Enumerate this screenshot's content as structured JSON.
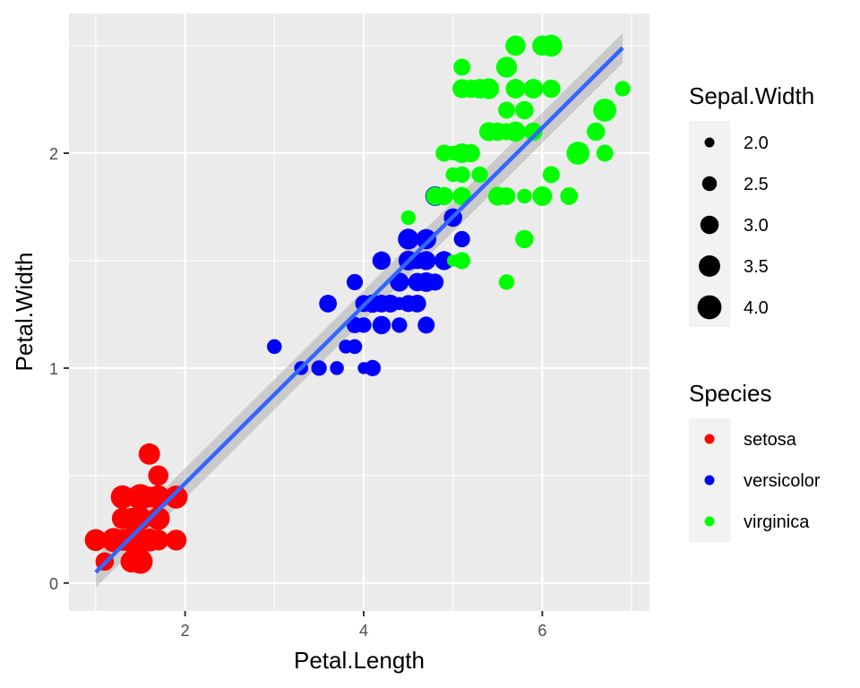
{
  "chart_data": {
    "type": "scatter",
    "xlabel": "Petal.Length",
    "ylabel": "Petal.Width",
    "xlim": [
      0.7,
      7.2
    ],
    "ylim": [
      -0.13,
      2.65
    ],
    "x_ticks": [
      2,
      4,
      6
    ],
    "y_ticks": [
      0,
      1,
      2
    ],
    "grid": true,
    "legend_position": "right",
    "background_color": "#ebebeb",
    "grid_color": "#ffffff",
    "size_legend": {
      "title": "Sepal.Width",
      "values": [
        "2.0",
        "2.5",
        "3.0",
        "3.5",
        "4.0"
      ]
    },
    "color_legend": {
      "title": "Species",
      "entries": [
        {
          "label": "setosa",
          "color": "#ff0000"
        },
        {
          "label": "versicolor",
          "color": "#0000ff"
        },
        {
          "label": "virginica",
          "color": "#00ff00"
        }
      ]
    },
    "regression": {
      "method": "lm",
      "color": "#3366ff",
      "x": [
        1.0,
        6.9
      ],
      "y": [
        0.05,
        2.49
      ],
      "band": 0.07
    },
    "series": [
      {
        "name": "setosa",
        "color": "#ff0000",
        "points": [
          {
            "x": 1.4,
            "y": 0.2,
            "s": 3.5
          },
          {
            "x": 1.4,
            "y": 0.2,
            "s": 3.0
          },
          {
            "x": 1.3,
            "y": 0.2,
            "s": 3.2
          },
          {
            "x": 1.5,
            "y": 0.2,
            "s": 3.1
          },
          {
            "x": 1.4,
            "y": 0.2,
            "s": 3.6
          },
          {
            "x": 1.7,
            "y": 0.4,
            "s": 3.9
          },
          {
            "x": 1.4,
            "y": 0.3,
            "s": 3.4
          },
          {
            "x": 1.5,
            "y": 0.2,
            "s": 3.4
          },
          {
            "x": 1.4,
            "y": 0.2,
            "s": 2.9
          },
          {
            "x": 1.5,
            "y": 0.1,
            "s": 3.1
          },
          {
            "x": 1.5,
            "y": 0.2,
            "s": 3.7
          },
          {
            "x": 1.6,
            "y": 0.2,
            "s": 3.4
          },
          {
            "x": 1.4,
            "y": 0.1,
            "s": 3.0
          },
          {
            "x": 1.1,
            "y": 0.1,
            "s": 3.0
          },
          {
            "x": 1.2,
            "y": 0.2,
            "s": 4.0
          },
          {
            "x": 1.5,
            "y": 0.4,
            "s": 4.4
          },
          {
            "x": 1.3,
            "y": 0.4,
            "s": 3.9
          },
          {
            "x": 1.4,
            "y": 0.3,
            "s": 3.5
          },
          {
            "x": 1.7,
            "y": 0.3,
            "s": 3.8
          },
          {
            "x": 1.5,
            "y": 0.3,
            "s": 3.8
          },
          {
            "x": 1.7,
            "y": 0.2,
            "s": 3.4
          },
          {
            "x": 1.5,
            "y": 0.4,
            "s": 3.7
          },
          {
            "x": 1.0,
            "y": 0.2,
            "s": 3.6
          },
          {
            "x": 1.7,
            "y": 0.5,
            "s": 3.3
          },
          {
            "x": 1.9,
            "y": 0.2,
            "s": 3.4
          },
          {
            "x": 1.6,
            "y": 0.2,
            "s": 3.0
          },
          {
            "x": 1.6,
            "y": 0.4,
            "s": 3.4
          },
          {
            "x": 1.5,
            "y": 0.2,
            "s": 3.5
          },
          {
            "x": 1.4,
            "y": 0.2,
            "s": 3.4
          },
          {
            "x": 1.6,
            "y": 0.2,
            "s": 3.2
          },
          {
            "x": 1.6,
            "y": 0.2,
            "s": 3.1
          },
          {
            "x": 1.5,
            "y": 0.4,
            "s": 3.4
          },
          {
            "x": 1.5,
            "y": 0.1,
            "s": 4.1
          },
          {
            "x": 1.4,
            "y": 0.2,
            "s": 4.2
          },
          {
            "x": 1.5,
            "y": 0.2,
            "s": 3.1
          },
          {
            "x": 1.2,
            "y": 0.2,
            "s": 3.2
          },
          {
            "x": 1.3,
            "y": 0.2,
            "s": 3.5
          },
          {
            "x": 1.4,
            "y": 0.1,
            "s": 3.6
          },
          {
            "x": 1.3,
            "y": 0.2,
            "s": 3.0
          },
          {
            "x": 1.5,
            "y": 0.2,
            "s": 3.4
          },
          {
            "x": 1.3,
            "y": 0.3,
            "s": 3.5
          },
          {
            "x": 1.3,
            "y": 0.3,
            "s": 2.3
          },
          {
            "x": 1.3,
            "y": 0.2,
            "s": 3.2
          },
          {
            "x": 1.6,
            "y": 0.6,
            "s": 3.5
          },
          {
            "x": 1.9,
            "y": 0.4,
            "s": 3.8
          },
          {
            "x": 1.4,
            "y": 0.3,
            "s": 3.0
          },
          {
            "x": 1.6,
            "y": 0.2,
            "s": 3.8
          },
          {
            "x": 1.4,
            "y": 0.2,
            "s": 3.2
          },
          {
            "x": 1.5,
            "y": 0.2,
            "s": 3.7
          },
          {
            "x": 1.4,
            "y": 0.2,
            "s": 3.3
          }
        ]
      },
      {
        "name": "versicolor",
        "color": "#0000ff",
        "points": [
          {
            "x": 4.7,
            "y": 1.4,
            "s": 3.2
          },
          {
            "x": 4.5,
            "y": 1.5,
            "s": 3.2
          },
          {
            "x": 4.9,
            "y": 1.5,
            "s": 3.1
          },
          {
            "x": 4.0,
            "y": 1.3,
            "s": 2.3
          },
          {
            "x": 4.6,
            "y": 1.5,
            "s": 2.8
          },
          {
            "x": 4.5,
            "y": 1.3,
            "s": 2.8
          },
          {
            "x": 4.7,
            "y": 1.6,
            "s": 3.3
          },
          {
            "x": 3.3,
            "y": 1.0,
            "s": 2.4
          },
          {
            "x": 4.6,
            "y": 1.3,
            "s": 2.9
          },
          {
            "x": 3.9,
            "y": 1.4,
            "s": 2.7
          },
          {
            "x": 3.5,
            "y": 1.0,
            "s": 2.0
          },
          {
            "x": 4.2,
            "y": 1.5,
            "s": 3.0
          },
          {
            "x": 4.0,
            "y": 1.0,
            "s": 2.2
          },
          {
            "x": 4.7,
            "y": 1.4,
            "s": 2.9
          },
          {
            "x": 3.6,
            "y": 1.3,
            "s": 2.9
          },
          {
            "x": 4.4,
            "y": 1.4,
            "s": 3.1
          },
          {
            "x": 4.5,
            "y": 1.5,
            "s": 3.0
          },
          {
            "x": 4.1,
            "y": 1.0,
            "s": 2.7
          },
          {
            "x": 4.5,
            "y": 1.5,
            "s": 2.2
          },
          {
            "x": 3.9,
            "y": 1.1,
            "s": 2.5
          },
          {
            "x": 4.8,
            "y": 1.8,
            "s": 3.2
          },
          {
            "x": 4.0,
            "y": 1.3,
            "s": 2.8
          },
          {
            "x": 4.9,
            "y": 1.5,
            "s": 2.5
          },
          {
            "x": 4.7,
            "y": 1.2,
            "s": 2.8
          },
          {
            "x": 4.3,
            "y": 1.3,
            "s": 2.9
          },
          {
            "x": 4.4,
            "y": 1.4,
            "s": 3.0
          },
          {
            "x": 4.8,
            "y": 1.4,
            "s": 2.8
          },
          {
            "x": 5.0,
            "y": 1.7,
            "s": 3.0
          },
          {
            "x": 4.5,
            "y": 1.5,
            "s": 2.9
          },
          {
            "x": 3.5,
            "y": 1.0,
            "s": 2.6
          },
          {
            "x": 3.8,
            "y": 1.1,
            "s": 2.4
          },
          {
            "x": 3.7,
            "y": 1.0,
            "s": 2.4
          },
          {
            "x": 3.9,
            "y": 1.2,
            "s": 2.7
          },
          {
            "x": 5.1,
            "y": 1.6,
            "s": 2.7
          },
          {
            "x": 4.5,
            "y": 1.5,
            "s": 3.0
          },
          {
            "x": 4.5,
            "y": 1.6,
            "s": 3.4
          },
          {
            "x": 4.7,
            "y": 1.5,
            "s": 3.1
          },
          {
            "x": 4.4,
            "y": 1.3,
            "s": 2.3
          },
          {
            "x": 4.1,
            "y": 1.3,
            "s": 3.0
          },
          {
            "x": 4.0,
            "y": 1.3,
            "s": 2.5
          },
          {
            "x": 4.4,
            "y": 1.2,
            "s": 2.6
          },
          {
            "x": 4.6,
            "y": 1.4,
            "s": 3.0
          },
          {
            "x": 4.0,
            "y": 1.2,
            "s": 2.6
          },
          {
            "x": 3.3,
            "y": 1.0,
            "s": 2.3
          },
          {
            "x": 4.2,
            "y": 1.3,
            "s": 2.7
          },
          {
            "x": 4.2,
            "y": 1.2,
            "s": 3.0
          },
          {
            "x": 4.2,
            "y": 1.3,
            "s": 2.9
          },
          {
            "x": 4.3,
            "y": 1.3,
            "s": 2.9
          },
          {
            "x": 3.0,
            "y": 1.1,
            "s": 2.5
          },
          {
            "x": 4.1,
            "y": 1.3,
            "s": 2.8
          }
        ]
      },
      {
        "name": "virginica",
        "color": "#00ff00",
        "points": [
          {
            "x": 6.0,
            "y": 2.5,
            "s": 3.3
          },
          {
            "x": 5.1,
            "y": 1.9,
            "s": 2.7
          },
          {
            "x": 5.9,
            "y": 2.1,
            "s": 3.0
          },
          {
            "x": 5.6,
            "y": 1.8,
            "s": 2.9
          },
          {
            "x": 5.8,
            "y": 2.2,
            "s": 3.0
          },
          {
            "x": 6.6,
            "y": 2.1,
            "s": 3.0
          },
          {
            "x": 4.5,
            "y": 1.7,
            "s": 2.5
          },
          {
            "x": 6.3,
            "y": 1.8,
            "s": 2.9
          },
          {
            "x": 5.8,
            "y": 1.8,
            "s": 2.5
          },
          {
            "x": 6.1,
            "y": 2.5,
            "s": 3.6
          },
          {
            "x": 5.1,
            "y": 2.0,
            "s": 3.2
          },
          {
            "x": 5.3,
            "y": 1.9,
            "s": 2.7
          },
          {
            "x": 5.5,
            "y": 2.1,
            "s": 3.0
          },
          {
            "x": 5.0,
            "y": 2.0,
            "s": 2.5
          },
          {
            "x": 5.1,
            "y": 2.4,
            "s": 2.8
          },
          {
            "x": 5.3,
            "y": 2.3,
            "s": 3.2
          },
          {
            "x": 5.5,
            "y": 1.8,
            "s": 3.0
          },
          {
            "x": 6.7,
            "y": 2.2,
            "s": 3.8
          },
          {
            "x": 6.9,
            "y": 2.3,
            "s": 2.6
          },
          {
            "x": 5.0,
            "y": 1.5,
            "s": 2.2
          },
          {
            "x": 5.7,
            "y": 2.3,
            "s": 3.2
          },
          {
            "x": 4.9,
            "y": 2.0,
            "s": 2.8
          },
          {
            "x": 6.7,
            "y": 2.0,
            "s": 2.8
          },
          {
            "x": 4.9,
            "y": 1.8,
            "s": 2.7
          },
          {
            "x": 5.7,
            "y": 2.1,
            "s": 3.3
          },
          {
            "x": 6.0,
            "y": 1.8,
            "s": 3.2
          },
          {
            "x": 4.8,
            "y": 1.8,
            "s": 2.8
          },
          {
            "x": 4.9,
            "y": 1.8,
            "s": 3.0
          },
          {
            "x": 5.6,
            "y": 2.1,
            "s": 2.8
          },
          {
            "x": 5.8,
            "y": 1.6,
            "s": 3.0
          },
          {
            "x": 6.1,
            "y": 1.9,
            "s": 2.8
          },
          {
            "x": 6.4,
            "y": 2.0,
            "s": 3.8
          },
          {
            "x": 5.6,
            "y": 2.2,
            "s": 2.8
          },
          {
            "x": 5.1,
            "y": 1.5,
            "s": 2.8
          },
          {
            "x": 5.6,
            "y": 1.4,
            "s": 2.6
          },
          {
            "x": 6.1,
            "y": 2.3,
            "s": 3.0
          },
          {
            "x": 5.6,
            "y": 2.4,
            "s": 3.4
          },
          {
            "x": 5.5,
            "y": 1.8,
            "s": 3.1
          },
          {
            "x": 4.8,
            "y": 1.8,
            "s": 3.0
          },
          {
            "x": 5.4,
            "y": 2.1,
            "s": 3.1
          },
          {
            "x": 5.6,
            "y": 2.4,
            "s": 3.1
          },
          {
            "x": 5.1,
            "y": 2.3,
            "s": 3.1
          },
          {
            "x": 5.1,
            "y": 1.9,
            "s": 2.7
          },
          {
            "x": 5.9,
            "y": 2.3,
            "s": 3.2
          },
          {
            "x": 5.7,
            "y": 2.5,
            "s": 3.3
          },
          {
            "x": 5.2,
            "y": 2.3,
            "s": 3.0
          },
          {
            "x": 5.0,
            "y": 1.9,
            "s": 2.5
          },
          {
            "x": 5.2,
            "y": 2.0,
            "s": 3.0
          },
          {
            "x": 5.4,
            "y": 2.3,
            "s": 3.4
          },
          {
            "x": 5.1,
            "y": 1.8,
            "s": 3.0
          }
        ]
      }
    ]
  }
}
